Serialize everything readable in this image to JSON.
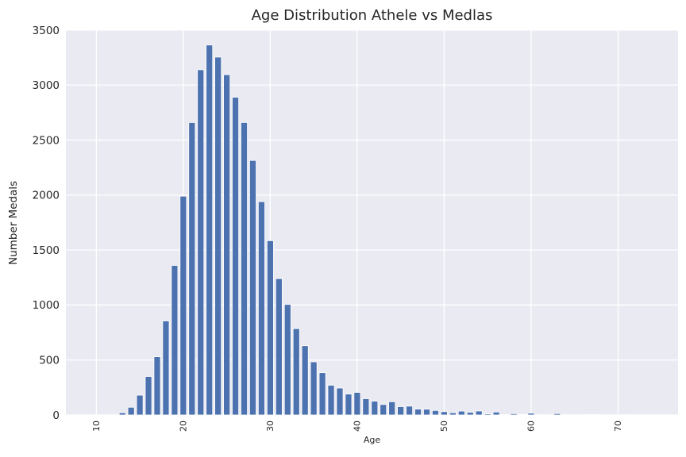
{
  "figure": {
    "background": "#ffffff"
  },
  "chart_data": {
    "type": "bar",
    "title": "Age Distribution Athele vs Medlas",
    "xlabel": "Age",
    "ylabel": "Number Medals",
    "x": [
      12,
      13,
      14,
      15,
      16,
      17,
      18,
      19,
      20,
      21,
      22,
      23,
      24,
      25,
      26,
      27,
      28,
      29,
      30,
      31,
      32,
      33,
      34,
      35,
      36,
      37,
      38,
      39,
      40,
      41,
      42,
      43,
      44,
      45,
      46,
      47,
      48,
      49,
      50,
      51,
      52,
      53,
      54,
      55,
      56,
      57,
      58,
      59,
      60,
      61,
      62,
      63,
      64,
      65,
      66,
      67,
      68,
      69,
      70,
      71,
      72,
      73,
      74,
      75,
      76
    ],
    "values": [
      6,
      20,
      70,
      180,
      350,
      530,
      855,
      1360,
      1990,
      2660,
      3140,
      3365,
      3255,
      3095,
      2890,
      2660,
      2315,
      1940,
      1585,
      1240,
      1005,
      785,
      630,
      483,
      385,
      270,
      245,
      190,
      205,
      148,
      125,
      95,
      120,
      76,
      80,
      53,
      52,
      41,
      30,
      20,
      35,
      24,
      36,
      10,
      26,
      3,
      12,
      4,
      16,
      3,
      2,
      13,
      2,
      3,
      2,
      4,
      2,
      1,
      2,
      3,
      2,
      1,
      1,
      2,
      1
    ],
    "xticks": [
      10,
      20,
      30,
      40,
      50,
      60,
      70
    ],
    "yticks": [
      0,
      500,
      1000,
      1500,
      2000,
      2500,
      3000,
      3500
    ],
    "xlim": [
      6.5,
      76.9
    ],
    "ylim": [
      0,
      3500
    ],
    "xtick_rotation": 90,
    "grid": true,
    "legend": false,
    "bar_color": "#4c72b0",
    "bar_edge_color": "#ffffff",
    "plot_background": "#eaeaf2",
    "grid_color": "#ffffff",
    "text_color": "#262626"
  }
}
